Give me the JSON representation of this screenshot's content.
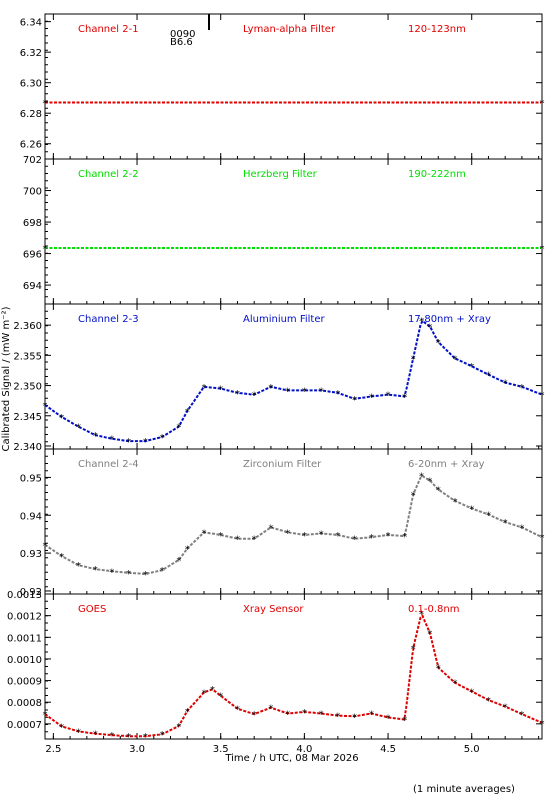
{
  "xlabel": "Time / h UTC, 08 Mar 2026",
  "ylabel": "Calibrated Signal / (mW m⁻²)",
  "footnote": "(1 minute averages)",
  "marker_glyph": "*",
  "marker_text": [
    "0090",
    "B6.6"
  ],
  "x_range": [
    2.45,
    5.42
  ],
  "x_ticks": [
    "2.5",
    "3.0",
    "3.5",
    "4.0",
    "4.5",
    "5.0"
  ],
  "chart_data": [
    {
      "type": "scatter",
      "labels": [
        "Channel 2-1",
        "Lyman-alpha Filter",
        "120-123nm"
      ],
      "color": "#e00000",
      "ylim": [
        6.25,
        6.345
      ],
      "yticks": [
        "6.26",
        "6.28",
        "6.30",
        "6.32",
        "6.34"
      ],
      "series": [
        {
          "x": [
            2.45,
            5.42
          ],
          "y": [
            6.287,
            6.287
          ]
        }
      ]
    },
    {
      "type": "scatter",
      "labels": [
        "Channel 2-2",
        "Herzberg Filter",
        "190-222nm"
      ],
      "color": "#00dd00",
      "ylim": [
        692.8,
        702.0
      ],
      "yticks": [
        "694",
        "696",
        "698",
        "700",
        "702"
      ],
      "series": [
        {
          "x": [
            2.45,
            5.42
          ],
          "y": [
            696.35,
            696.35
          ]
        }
      ]
    },
    {
      "type": "scatter",
      "labels": [
        "Channel 2-3",
        "Aluminium Filter",
        "17-80nm + Xray"
      ],
      "color": "#0010c8",
      "ylim": [
        2.3395,
        2.3635
      ],
      "yticks": [
        "2.340",
        "2.345",
        "2.350",
        "2.355",
        "2.360"
      ],
      "series": [
        {
          "x": [
            2.45,
            2.55,
            2.65,
            2.75,
            2.85,
            2.95,
            3.05,
            3.15,
            3.25,
            3.3,
            3.4,
            3.5,
            3.6,
            3.7,
            3.8,
            3.9,
            4.0,
            4.1,
            4.2,
            4.3,
            4.4,
            4.5,
            4.6,
            4.65,
            4.7,
            4.75,
            4.8,
            4.9,
            5.0,
            5.1,
            5.2,
            5.3,
            5.42
          ],
          "y": [
            2.3468,
            2.3448,
            2.3432,
            2.3418,
            2.3412,
            2.3408,
            2.3408,
            2.3415,
            2.3432,
            2.3458,
            2.3498,
            2.3495,
            2.3488,
            2.3485,
            2.3498,
            2.3492,
            2.3492,
            2.3492,
            2.3488,
            2.3478,
            2.3482,
            2.3485,
            2.3482,
            2.3545,
            2.3608,
            2.3598,
            2.3572,
            2.3545,
            2.3532,
            2.3518,
            2.3505,
            2.3498,
            2.3485
          ]
        }
      ]
    },
    {
      "type": "scatter",
      "labels": [
        "Channel 2-4",
        "Zirconium Filter",
        "6-20nm + Xray"
      ],
      "color": "#808080",
      "ylim": [
        0.9192,
        0.9575
      ],
      "yticks": [
        "0.92",
        "0.93",
        "0.94",
        "0.95"
      ],
      "series": [
        {
          "x": [
            2.45,
            2.55,
            2.65,
            2.75,
            2.85,
            2.95,
            3.05,
            3.15,
            3.25,
            3.3,
            3.4,
            3.5,
            3.6,
            3.7,
            3.8,
            3.9,
            4.0,
            4.1,
            4.2,
            4.3,
            4.4,
            4.5,
            4.6,
            4.65,
            4.7,
            4.75,
            4.8,
            4.9,
            5.0,
            5.1,
            5.2,
            5.3,
            5.42
          ],
          "y": [
            0.9322,
            0.9292,
            0.9268,
            0.9258,
            0.9252,
            0.9248,
            0.9245,
            0.9255,
            0.9282,
            0.9312,
            0.9355,
            0.9348,
            0.9338,
            0.9338,
            0.9368,
            0.9355,
            0.9348,
            0.9352,
            0.9348,
            0.9338,
            0.9342,
            0.9348,
            0.9345,
            0.9455,
            0.9505,
            0.9492,
            0.9468,
            0.9438,
            0.9418,
            0.9402,
            0.9382,
            0.9368,
            0.9342
          ]
        }
      ]
    },
    {
      "type": "scatter",
      "labels": [
        "GOES",
        "Xray Sensor",
        "0.1-0.8nm"
      ],
      "color": "#e00000",
      "ylim": [
        0.00063,
        0.0013
      ],
      "yticks": [
        "0.0007",
        "0.0008",
        "0.0009",
        "0.0010",
        "0.0011",
        "0.0012",
        "0.0013"
      ],
      "series": [
        {
          "x": [
            2.45,
            2.55,
            2.65,
            2.75,
            2.85,
            2.95,
            3.05,
            3.15,
            3.25,
            3.3,
            3.4,
            3.45,
            3.5,
            3.6,
            3.7,
            3.8,
            3.9,
            4.0,
            4.1,
            4.2,
            4.3,
            4.4,
            4.5,
            4.6,
            4.65,
            4.7,
            4.75,
            4.8,
            4.9,
            5.0,
            5.1,
            5.2,
            5.3,
            5.42
          ],
          "y": [
            0.000745,
            0.000688,
            0.000665,
            0.000655,
            0.000648,
            0.000643,
            0.000643,
            0.000652,
            0.00069,
            0.00076,
            0.000845,
            0.00086,
            0.00083,
            0.00077,
            0.000745,
            0.000775,
            0.000748,
            0.000755,
            0.000748,
            0.000738,
            0.000735,
            0.000748,
            0.00073,
            0.00072,
            0.00105,
            0.00121,
            0.00112,
            0.00096,
            0.00089,
            0.00085,
            0.00081,
            0.00078,
            0.000745,
            0.000705
          ]
        }
      ]
    }
  ]
}
